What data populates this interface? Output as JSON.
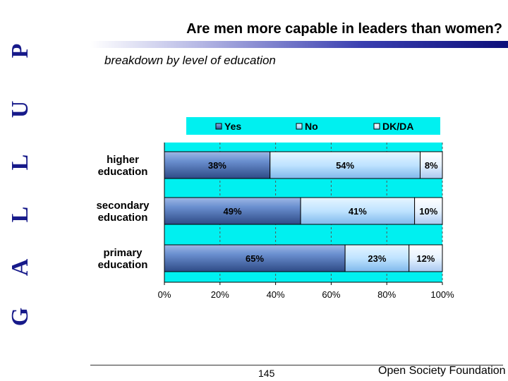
{
  "slide": {
    "title": "Are men more capable in leaders than women?",
    "subtitle": "breakdown by level of education",
    "page_number": "145",
    "footer": "Open Society Foundation",
    "brand_letters": [
      "G",
      "A",
      "L",
      "L",
      "U",
      "P"
    ],
    "brand_color": "#171a8a"
  },
  "colors": {
    "plot_background": "#00f0f0",
    "legend_background": "#00f0f0",
    "yes": "#6a8fcf",
    "no": "#bfe3ff",
    "dkda": "#e6f2ff"
  },
  "chart_data": {
    "type": "bar",
    "orientation": "horizontal",
    "stacked": true,
    "title": "Are men more capable in leaders than women?",
    "subtitle": "breakdown by level of education",
    "categories_lines": [
      [
        "higher",
        "education"
      ],
      [
        "secondary",
        "education"
      ],
      [
        "primary",
        "education"
      ]
    ],
    "categories": [
      "higher education",
      "secondary education",
      "primary education"
    ],
    "series": [
      {
        "name": "Yes",
        "values": [
          38,
          49,
          65
        ],
        "labels": [
          "38%",
          "49%",
          "65%"
        ]
      },
      {
        "name": "No",
        "values": [
          54,
          41,
          23
        ],
        "labels": [
          "54%",
          "41%",
          "23%"
        ]
      },
      {
        "name": "DK/DA",
        "values": [
          8,
          10,
          12
        ],
        "labels": [
          "8%",
          "10%",
          "12%"
        ]
      }
    ],
    "xlim": [
      0,
      100
    ],
    "x_ticks": [
      "0%",
      "20%",
      "40%",
      "60%",
      "80%",
      "100%"
    ],
    "legend_position": "top",
    "grid": "vertical dashed"
  }
}
